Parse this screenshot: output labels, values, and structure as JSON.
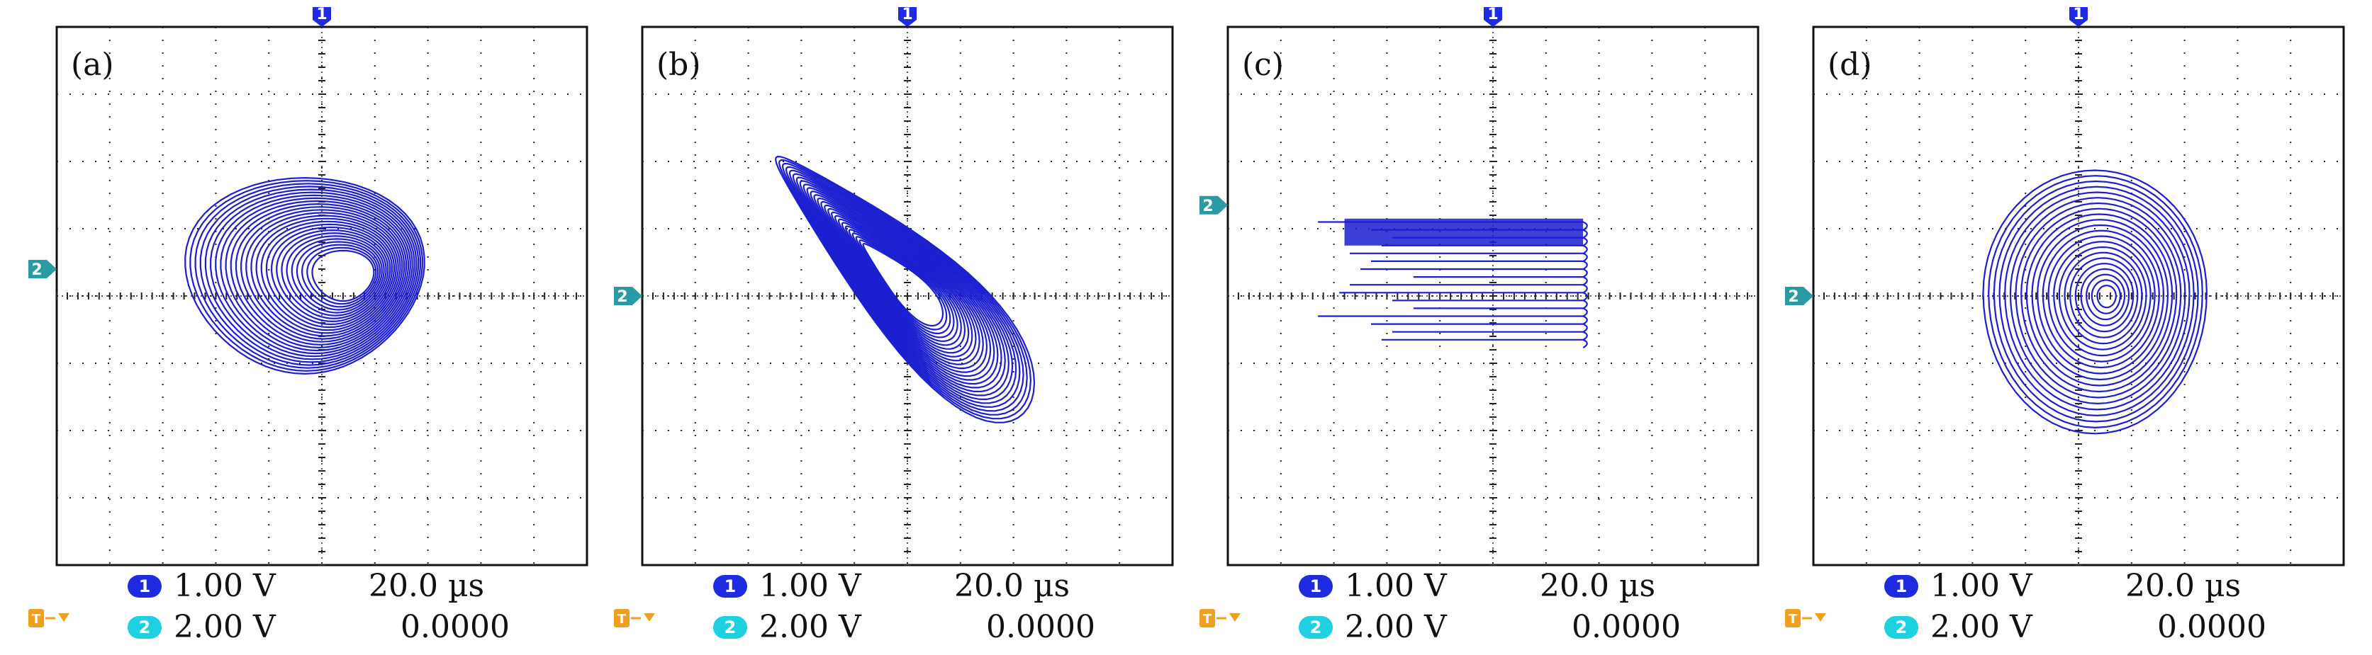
{
  "chart_data": [
    {
      "type": "scatter",
      "panel_label": "(a)",
      "grid": true,
      "xlim": [
        -5,
        5
      ],
      "ylim": [
        -4,
        4
      ],
      "trace_color": "#1b1fd0",
      "markers": {
        "ch1": "1",
        "ch2": "2",
        "ch2_level_div": 0.4
      },
      "attractor": {
        "kind": "egg",
        "cx": -0.35,
        "cy": 0.3,
        "rx": 2.3,
        "ry": 1.5,
        "loops": 26
      },
      "ch1_scale": "1.00 V",
      "ch2_scale": "2.00 V",
      "timebase": "20.0 µs",
      "trigger": "0.0000"
    },
    {
      "type": "scatter",
      "panel_label": "(b)",
      "grid": true,
      "xlim": [
        -5,
        5
      ],
      "ylim": [
        -4,
        4
      ],
      "trace_color": "#1b1fd0",
      "markers": {
        "ch1": "1",
        "ch2": "2",
        "ch2_level_div": 0.0
      },
      "attractor": {
        "kind": "wing",
        "cx": -0.1,
        "cy": 0.2,
        "rx": 3.1,
        "ry": 0.8,
        "loops": 26,
        "tilt": -38
      },
      "ch1_scale": "1.00 V",
      "ch2_scale": "2.00 V",
      "timebase": "20.0 µs",
      "trigger": "0.0000"
    },
    {
      "type": "scatter",
      "panel_label": "(c)",
      "grid": true,
      "xlim": [
        -5,
        5
      ],
      "ylim": [
        -4,
        4
      ],
      "trace_color": "#1b1fd0",
      "markers": {
        "ch1": "1",
        "ch2": "2",
        "ch2_level_div": 1.35
      },
      "attractor": {
        "kind": "comb",
        "x0": -3.3,
        "x1": 1.7,
        "ytop": 1.1,
        "ybot": -0.65,
        "lines": 16
      },
      "ch1_scale": "1.00 V",
      "ch2_scale": "2.00 V",
      "timebase": "20.0 µs",
      "trigger": "0.0000"
    },
    {
      "type": "scatter",
      "panel_label": "(d)",
      "grid": true,
      "xlim": [
        -5,
        5
      ],
      "ylim": [
        -4,
        4
      ],
      "trace_color": "#1b1fd0",
      "markers": {
        "ch1": "1",
        "ch2": "2",
        "ch2_level_div": 0.0
      },
      "attractor": {
        "kind": "spiral",
        "cx": 0.3,
        "cy": 0.05,
        "rx": 2.2,
        "ry": 1.9,
        "loops": 22
      },
      "ch1_scale": "1.00 V",
      "ch2_scale": "2.00 V",
      "timebase": "20.0 µs",
      "trigger": "0.0000"
    }
  ],
  "readouts": [
    {
      "ch1_badge": "1",
      "ch2_badge": "2",
      "ch1_scale": "1.00 V",
      "ch2_scale": "2.00 V",
      "timebase": "20.0 µs",
      "trigger": "0.0000"
    },
    {
      "ch1_badge": "1",
      "ch2_badge": "2",
      "ch1_scale": "1.00 V",
      "ch2_scale": "2.00 V",
      "timebase": "20.0 µs",
      "trigger": "0.0000"
    },
    {
      "ch1_badge": "1",
      "ch2_badge": "2",
      "ch1_scale": "1.00 V",
      "ch2_scale": "2.00 V",
      "timebase": "20.0 µs",
      "trigger": "0.0000"
    },
    {
      "ch1_badge": "1",
      "ch2_badge": "2",
      "ch1_scale": "1.00 V",
      "ch2_scale": "2.00 V",
      "timebase": "20.0 µs",
      "trigger": "0.0000"
    }
  ],
  "colors": {
    "frame": "#111111",
    "grid_dot": "#222222",
    "ch1": "#1e2be0",
    "ch2": "#1fd0e0",
    "ch2_marker": "#2a9aa5",
    "trigger": "#f0a020"
  },
  "icons": {
    "trigger": "trigger-arrow-icon"
  }
}
